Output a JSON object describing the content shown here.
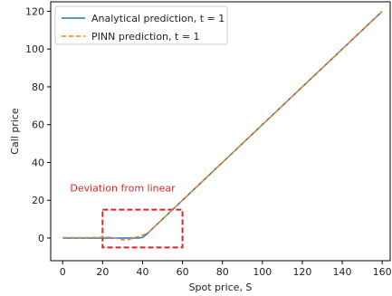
{
  "chart_data": {
    "type": "line",
    "xlabel": "Spot price, S",
    "ylabel": "Call price",
    "xlim": [
      -6,
      164
    ],
    "ylim": [
      -12,
      125
    ],
    "xticks": [
      0,
      20,
      40,
      60,
      80,
      100,
      120,
      140,
      160
    ],
    "yticks": [
      0,
      20,
      40,
      60,
      80,
      100,
      120
    ],
    "grid": false,
    "legend_position": "top-left",
    "series": [
      {
        "name": "Analytical prediction, t = 1",
        "color": "#1f77b4",
        "style": "solid",
        "x": [
          0,
          10,
          20,
          30,
          35,
          38,
          40,
          42,
          45,
          50,
          60,
          80,
          100,
          120,
          140,
          160
        ],
        "y": [
          0,
          0,
          0,
          0,
          0,
          0,
          0.3,
          2,
          5,
          10,
          20,
          40,
          60,
          80,
          100,
          120
        ]
      },
      {
        "name": "PINN prediction, t = 1",
        "color": "#ff7f0e",
        "style": "dashed",
        "x": [
          0,
          10,
          20,
          25,
          30,
          33,
          36,
          40,
          43,
          45,
          50,
          60,
          80,
          100,
          120,
          140,
          160
        ],
        "y": [
          0.3,
          0.2,
          0.4,
          0.3,
          -1.0,
          -0.8,
          0.2,
          1.5,
          3.0,
          5.0,
          10,
          20,
          40,
          60,
          80,
          100,
          120
        ]
      }
    ],
    "annotations": [
      {
        "text": "Deviation from linear",
        "color": "#d62728",
        "box": {
          "x0": 20,
          "x1": 60,
          "y0": -5,
          "y1": 15
        }
      }
    ]
  }
}
